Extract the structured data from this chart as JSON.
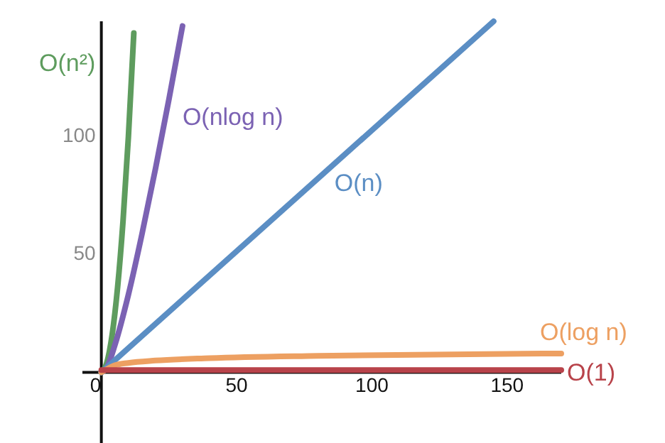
{
  "chart_data": {
    "type": "line",
    "xlim": [
      -7,
      170
    ],
    "ylim": [
      -30,
      149
    ],
    "xticks": [
      0,
      50,
      100,
      150
    ],
    "yticks": [
      50,
      100
    ],
    "grid": false,
    "marker": "none",
    "line_style": "solid",
    "series": [
      {
        "name": "O(n²)",
        "color": "#5e9c5e",
        "x": [
          0,
          2,
          4,
          6,
          8,
          10,
          12
        ],
        "values": [
          0,
          4,
          16,
          36,
          64,
          100,
          144
        ]
      },
      {
        "name": "O(nlog n)",
        "color": "#7b62b3",
        "x": [
          0,
          2,
          5,
          10,
          15,
          20,
          25,
          30
        ],
        "values": [
          0,
          2,
          11.6,
          33,
          58.6,
          86.4,
          116,
          147
        ]
      },
      {
        "name": "O(n)",
        "color": "#5b8ec4",
        "x": [
          0,
          145
        ],
        "values": [
          0,
          149
        ]
      },
      {
        "name": "O(log n)",
        "color": "#eda062",
        "x": [
          0,
          5,
          10,
          20,
          40,
          80,
          170
        ],
        "values": [
          0,
          3,
          4,
          5,
          6,
          7,
          8
        ]
      },
      {
        "name": "O(1)",
        "color": "#b8434a",
        "x": [
          0,
          170
        ],
        "values": [
          1,
          1
        ]
      }
    ]
  }
}
